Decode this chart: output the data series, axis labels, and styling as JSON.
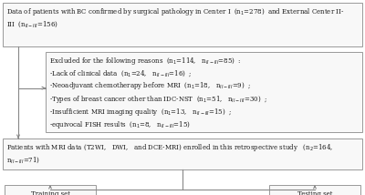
{
  "box_bg": "#f8f8f8",
  "box_border": "#999999",
  "arrow_color": "#888888",
  "text_color": "#1a1a1a",
  "bg_color": "#ffffff",
  "fontsize": 5.0
}
